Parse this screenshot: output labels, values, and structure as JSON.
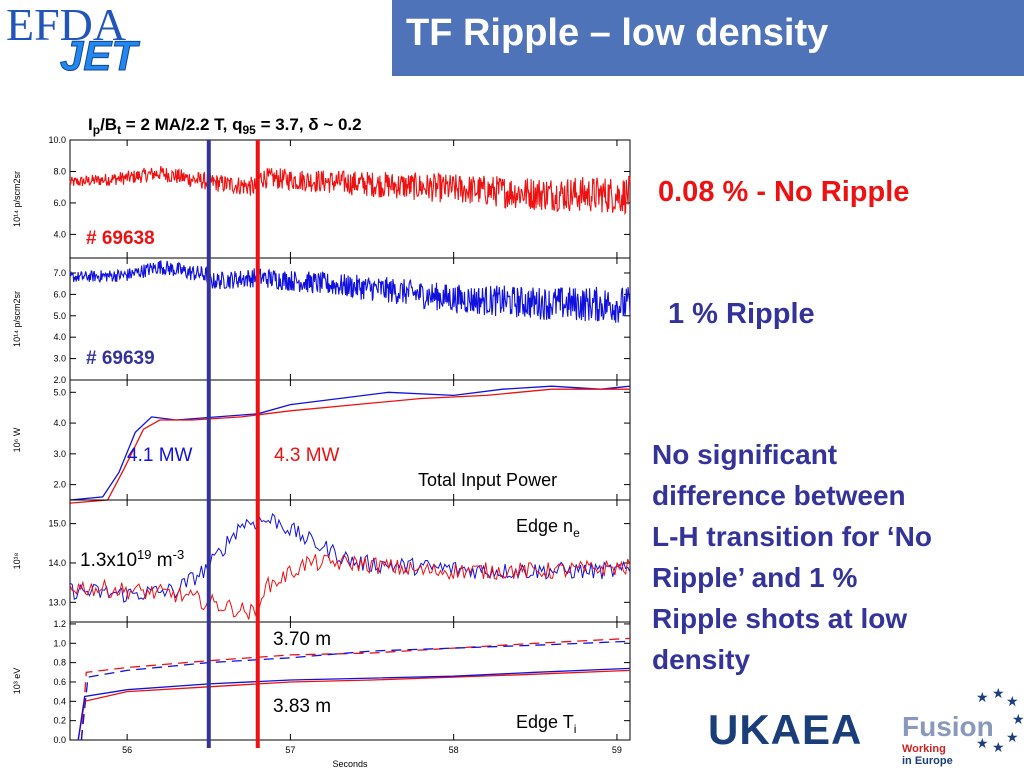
{
  "header": {
    "title": "TF Ripple – low density"
  },
  "logos": {
    "efda_text": "EFDA",
    "jet_text": "JET",
    "ukaea_text": "UKAEA",
    "fusion_text": "Fusion",
    "fusion_sub1": "Working",
    "fusion_sub2": "in Europe"
  },
  "notes": {
    "no_ripple": "0.08 % - No Ripple",
    "ripple": "1 % Ripple",
    "conclusion_lines": [
      "No significant",
      "difference between",
      "L-H transition for ‘No",
      "Ripple’ and 1 %",
      "Ripple shots at low",
      "density"
    ]
  },
  "colors": {
    "red": "#ee1111",
    "blue": "#1111dd",
    "navy": "#333399",
    "title_bg": "#4f73b8",
    "note_blue": "#333399"
  },
  "chart_data": {
    "type": "line",
    "title_parts": {
      "ip": "I",
      "ip_sub": "p",
      "sep": "/B",
      "bt_sub": "t",
      "eq1": " = 2 MA/2.2 T,   q",
      "q_sub": "95",
      "eq2": " = 3.7,  δ ~ 0.2"
    },
    "xlabel": "Seconds",
    "xlim": [
      55.65,
      59.08
    ],
    "xticks": [
      56,
      57,
      58,
      59
    ],
    "vlines": [
      {
        "x": 56.5,
        "color": "navy"
      },
      {
        "x": 56.8,
        "color": "red"
      }
    ],
    "panels": [
      {
        "ylabel": "10¹⁴  p/scm2sr",
        "ylim": [
          2.5,
          10.0
        ],
        "yticks": [
          4.0,
          6.0,
          8.0,
          10.0
        ],
        "annotations": [
          "# 69638"
        ],
        "series": [
          {
            "name": "",
            "color": "red",
            "noisy": true,
            "points": [
              [
                55.65,
                7.3
              ],
              [
                56.0,
                7.6
              ],
              [
                56.2,
                7.9
              ],
              [
                56.4,
                7.5
              ],
              [
                56.6,
                7.2
              ],
              [
                56.8,
                7.0
              ],
              [
                56.81,
                7.6
              ],
              [
                57.5,
                7.2
              ],
              [
                58.0,
                6.9
              ],
              [
                58.5,
                6.6
              ],
              [
                59.08,
                6.5
              ]
            ]
          }
        ]
      },
      {
        "ylabel": "10¹⁴  p/scm2sr",
        "ylim": [
          2.0,
          7.7
        ],
        "yticks": [
          2.0,
          3.0,
          4.0,
          5.0,
          6.0,
          7.0
        ],
        "annotations": [
          "# 69639"
        ],
        "series": [
          {
            "name": "",
            "color": "blue",
            "noisy": true,
            "points": [
              [
                55.65,
                6.8
              ],
              [
                56.0,
                6.9
              ],
              [
                56.2,
                7.3
              ],
              [
                56.4,
                7.0
              ],
              [
                56.5,
                6.9
              ],
              [
                56.51,
                6.6
              ],
              [
                56.8,
                6.8
              ],
              [
                57.2,
                6.5
              ],
              [
                57.6,
                6.2
              ],
              [
                58.0,
                5.8
              ],
              [
                58.5,
                5.6
              ],
              [
                59.08,
                5.5
              ]
            ]
          }
        ]
      },
      {
        "ylabel": "10⁶   W",
        "ylim": [
          1.5,
          5.4
        ],
        "yticks": [
          2.0,
          3.0,
          4.0,
          5.0
        ],
        "annotations": [
          "4.1 MW",
          "4.3 MW",
          "Total Input Power"
        ],
        "series": [
          {
            "name": "",
            "color": "blue",
            "noisy": false,
            "points": [
              [
                55.65,
                1.5
              ],
              [
                55.85,
                1.6
              ],
              [
                55.95,
                2.4
              ],
              [
                56.05,
                3.7
              ],
              [
                56.15,
                4.2
              ],
              [
                56.3,
                4.1
              ],
              [
                56.55,
                4.2
              ],
              [
                56.8,
                4.3
              ],
              [
                57.0,
                4.6
              ],
              [
                57.3,
                4.8
              ],
              [
                57.6,
                5.0
              ],
              [
                58.0,
                4.9
              ],
              [
                58.3,
                5.1
              ],
              [
                58.6,
                5.2
              ],
              [
                58.9,
                5.1
              ],
              [
                59.08,
                5.2
              ]
            ]
          },
          {
            "name": "",
            "color": "red",
            "noisy": false,
            "points": [
              [
                55.65,
                1.4
              ],
              [
                55.88,
                1.5
              ],
              [
                55.98,
                2.5
              ],
              [
                56.1,
                3.8
              ],
              [
                56.2,
                4.1
              ],
              [
                56.4,
                4.1
              ],
              [
                56.7,
                4.2
              ],
              [
                57.0,
                4.4
              ],
              [
                57.4,
                4.6
              ],
              [
                57.8,
                4.8
              ],
              [
                58.2,
                4.9
              ],
              [
                58.6,
                5.1
              ],
              [
                59.08,
                5.1
              ]
            ]
          }
        ]
      },
      {
        "ylabel": "10¹⁸",
        "ylim": [
          12.5,
          15.6
        ],
        "yticks": [
          13.0,
          14.0,
          15.0
        ],
        "annotations": [
          "1.3x10",
          "19",
          " m",
          "-3",
          "Edge n",
          "e"
        ],
        "series": [
          {
            "name": "",
            "color": "blue",
            "noisy": true,
            "points": [
              [
                55.65,
                13.3
              ],
              [
                56.0,
                13.2
              ],
              [
                56.3,
                13.3
              ],
              [
                56.5,
                13.9
              ],
              [
                56.7,
                15.0
              ],
              [
                56.9,
                15.1
              ],
              [
                57.1,
                14.6
              ],
              [
                57.4,
                14.0
              ],
              [
                57.8,
                13.9
              ],
              [
                58.2,
                13.8
              ],
              [
                58.6,
                13.8
              ],
              [
                59.08,
                13.8
              ]
            ]
          },
          {
            "name": "",
            "color": "red",
            "noisy": true,
            "points": [
              [
                55.65,
                13.4
              ],
              [
                56.0,
                13.3
              ],
              [
                56.3,
                13.2
              ],
              [
                56.6,
                12.9
              ],
              [
                56.8,
                12.7
              ],
              [
                56.82,
                13.3
              ],
              [
                57.1,
                14.0
              ],
              [
                57.4,
                14.0
              ],
              [
                57.8,
                13.8
              ],
              [
                58.2,
                13.8
              ],
              [
                58.6,
                13.8
              ],
              [
                59.08,
                13.9
              ]
            ]
          }
        ]
      },
      {
        "ylabel": "10³   eV",
        "ylim": [
          0.0,
          1.22
        ],
        "yticks": [
          0.0,
          0.2,
          0.4,
          0.6,
          0.8,
          1.0,
          1.2
        ],
        "annotations": [
          "3.70 m",
          "3.83 m",
          "Edge T",
          "i"
        ],
        "series": [
          {
            "name": "",
            "color": "red",
            "dashed": true,
            "points": [
              [
                55.72,
                0.0
              ],
              [
                55.75,
                0.7
              ],
              [
                56.0,
                0.75
              ],
              [
                56.5,
                0.82
              ],
              [
                57.0,
                0.88
              ],
              [
                57.5,
                0.9
              ],
              [
                58.0,
                0.95
              ],
              [
                58.5,
                1.0
              ],
              [
                59.08,
                1.05
              ]
            ]
          },
          {
            "name": "",
            "color": "blue",
            "dashed": true,
            "points": [
              [
                55.72,
                0.0
              ],
              [
                55.76,
                0.65
              ],
              [
                56.0,
                0.72
              ],
              [
                56.5,
                0.8
              ],
              [
                57.0,
                0.85
              ],
              [
                57.5,
                0.92
              ],
              [
                58.0,
                0.95
              ],
              [
                58.5,
                0.98
              ],
              [
                59.08,
                1.02
              ]
            ]
          },
          {
            "name": "",
            "color": "red",
            "dashed": false,
            "points": [
              [
                55.7,
                0.0
              ],
              [
                55.74,
                0.4
              ],
              [
                56.0,
                0.5
              ],
              [
                56.5,
                0.55
              ],
              [
                57.0,
                0.6
              ],
              [
                57.5,
                0.62
              ],
              [
                58.0,
                0.65
              ],
              [
                58.5,
                0.68
              ],
              [
                59.08,
                0.72
              ]
            ]
          },
          {
            "name": "",
            "color": "blue",
            "dashed": false,
            "points": [
              [
                55.7,
                0.0
              ],
              [
                55.74,
                0.45
              ],
              [
                56.0,
                0.52
              ],
              [
                56.5,
                0.58
              ],
              [
                57.0,
                0.62
              ],
              [
                57.5,
                0.64
              ],
              [
                58.0,
                0.66
              ],
              [
                58.5,
                0.7
              ],
              [
                59.08,
                0.74
              ]
            ]
          }
        ]
      }
    ]
  }
}
